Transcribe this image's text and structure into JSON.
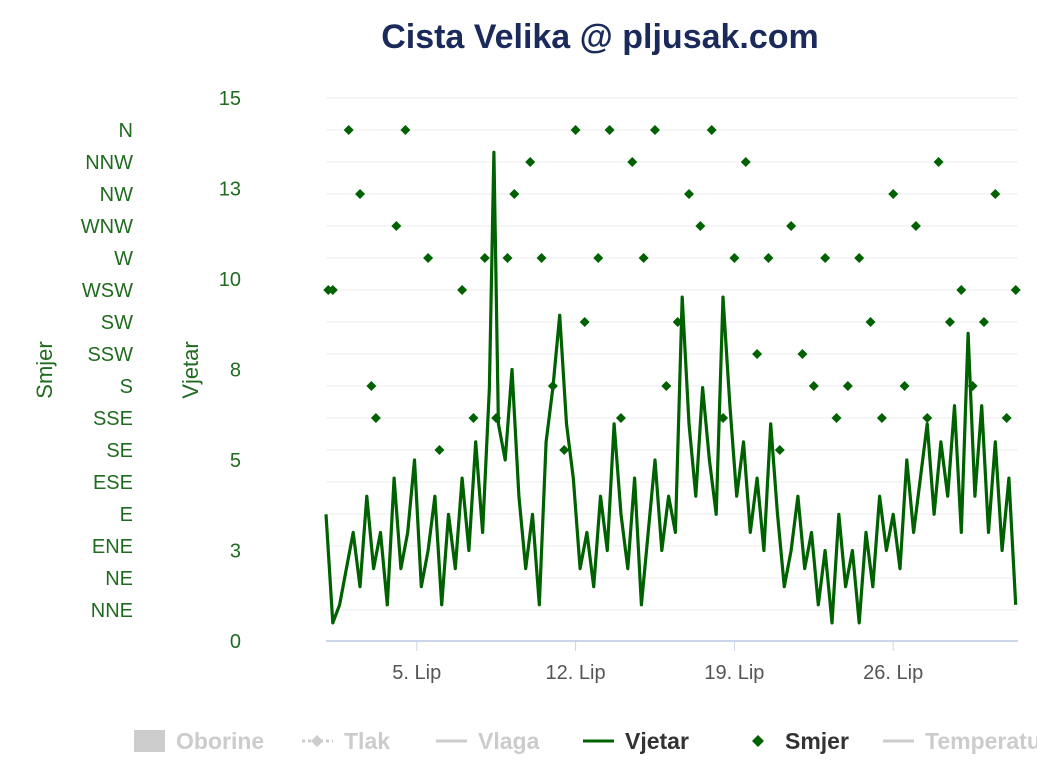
{
  "chart_data": {
    "type": "line",
    "title": "Cista Velika @ pljusak.com",
    "x_tick_labels": [
      "5. Lip",
      "12. Lip",
      "19. Lip",
      "26. Lip"
    ],
    "x_tick_days": [
      5,
      12,
      19,
      26
    ],
    "x_range_days": [
      1,
      31.5
    ],
    "y_left_wind": {
      "label": "Vjetar",
      "ticks": [
        "0",
        "3",
        "5",
        "8",
        "10",
        "13",
        "15"
      ],
      "range": [
        0,
        15
      ]
    },
    "y_left_direction": {
      "label": "Smjer",
      "ticks": [
        "N",
        "NNW",
        "NW",
        "WNW",
        "W",
        "WSW",
        "SW",
        "SSW",
        "S",
        "SSE",
        "SE",
        "ESE",
        "E",
        "ENE",
        "NE",
        "NNE"
      ]
    },
    "grid": true,
    "legend": {
      "position": "bottom",
      "items": [
        {
          "label": "Oborine",
          "symbol": "rect",
          "active": false
        },
        {
          "label": "Tlak",
          "symbol": "dash-diamond",
          "active": false
        },
        {
          "label": "Vlaga",
          "symbol": "line",
          "active": false
        },
        {
          "label": "Vjetar",
          "symbol": "line",
          "active": true
        },
        {
          "label": "Smjer",
          "symbol": "diamond",
          "active": true
        },
        {
          "label": "Temperatu",
          "symbol": "line",
          "active": false
        }
      ]
    },
    "colors": {
      "series": "#006100",
      "axis_text": "#1f6b1f",
      "title": "#1a2a5a",
      "inactive": "#cccccc",
      "grid": "#eeeeee"
    },
    "series": [
      {
        "name": "Vjetar",
        "x": [
          1.0,
          1.3,
          1.6,
          1.9,
          2.2,
          2.5,
          2.8,
          3.1,
          3.4,
          3.7,
          4.0,
          4.3,
          4.6,
          4.9,
          5.2,
          5.5,
          5.8,
          6.1,
          6.4,
          6.7,
          7.0,
          7.3,
          7.6,
          7.9,
          8.2,
          8.4,
          8.6,
          8.9,
          9.2,
          9.5,
          9.8,
          10.1,
          10.4,
          10.7,
          11.0,
          11.3,
          11.6,
          11.9,
          12.2,
          12.5,
          12.8,
          13.1,
          13.4,
          13.7,
          14.0,
          14.3,
          14.6,
          14.9,
          15.2,
          15.5,
          15.8,
          16.1,
          16.4,
          16.7,
          17.0,
          17.3,
          17.6,
          17.9,
          18.2,
          18.5,
          18.8,
          19.1,
          19.4,
          19.7,
          20.0,
          20.3,
          20.6,
          20.9,
          21.2,
          21.5,
          21.8,
          22.1,
          22.4,
          22.7,
          23.0,
          23.3,
          23.6,
          23.9,
          24.2,
          24.5,
          24.8,
          25.1,
          25.4,
          25.7,
          26.0,
          26.3,
          26.6,
          26.9,
          27.2,
          27.5,
          27.8,
          28.1,
          28.4,
          28.7,
          29.0,
          29.3,
          29.6,
          29.9,
          30.2,
          30.5,
          30.8,
          31.1,
          31.4
        ],
        "y": [
          3.5,
          0.5,
          1.0,
          2.0,
          3.0,
          1.5,
          4.0,
          2.0,
          3.0,
          1.0,
          4.5,
          2.0,
          3.0,
          5.0,
          1.5,
          2.5,
          4.0,
          1.0,
          3.5,
          2.0,
          4.5,
          2.5,
          5.5,
          3.0,
          7.0,
          13.5,
          6.0,
          5.0,
          7.5,
          4.0,
          2.0,
          3.5,
          1.0,
          5.5,
          7.0,
          9.0,
          6.0,
          4.5,
          2.0,
          3.0,
          1.5,
          4.0,
          2.5,
          6.0,
          3.5,
          2.0,
          4.5,
          1.0,
          3.0,
          5.0,
          2.5,
          4.0,
          3.0,
          9.5,
          6.0,
          4.0,
          7.0,
          5.0,
          3.5,
          9.5,
          6.5,
          4.0,
          5.5,
          3.0,
          4.5,
          2.5,
          6.0,
          3.5,
          1.5,
          2.5,
          4.0,
          2.0,
          3.0,
          1.0,
          2.5,
          0.5,
          3.5,
          1.5,
          2.5,
          0.5,
          3.0,
          1.5,
          4.0,
          2.5,
          3.5,
          2.0,
          5.0,
          3.0,
          4.5,
          6.0,
          3.5,
          5.5,
          4.0,
          6.5,
          3.0,
          8.5,
          4.0,
          6.5,
          3.0,
          5.5,
          2.5,
          4.5,
          1.0
        ]
      },
      {
        "name": "Smjer",
        "x": [
          1.1,
          1.3,
          2.0,
          2.5,
          3.0,
          3.2,
          4.1,
          4.5,
          5.5,
          6.0,
          7.0,
          7.5,
          8.0,
          8.5,
          9.0,
          9.3,
          10.0,
          10.5,
          11.0,
          11.5,
          12.0,
          12.4,
          13.0,
          13.5,
          14.0,
          14.5,
          15.0,
          15.5,
          16.0,
          16.5,
          17.0,
          17.5,
          18.0,
          18.5,
          19.0,
          19.5,
          20.0,
          20.5,
          21.0,
          21.5,
          22.0,
          22.5,
          23.0,
          23.5,
          24.0,
          24.5,
          25.0,
          25.5,
          26.0,
          26.5,
          27.0,
          27.5,
          28.0,
          28.5,
          29.0,
          29.5,
          30.0,
          30.5,
          31.0,
          31.4
        ],
        "y": [
          "WSW",
          "WSW",
          "N",
          "NW",
          "S",
          "SSE",
          "WNW",
          "N",
          "W",
          "SE",
          "WSW",
          "SSE",
          "W",
          "SSE",
          "W",
          "NW",
          "NNW",
          "W",
          "S",
          "SE",
          "N",
          "SW",
          "W",
          "N",
          "SSE",
          "NNW",
          "W",
          "N",
          "S",
          "SW",
          "NW",
          "WNW",
          "N",
          "SSE",
          "W",
          "NNW",
          "SSW",
          "W",
          "SE",
          "WNW",
          "SSW",
          "S",
          "W",
          "SSE",
          "S",
          "W",
          "SW",
          "SSE",
          "NW",
          "S",
          "WNW",
          "SSE",
          "NNW",
          "SW",
          "WSW",
          "S",
          "SW",
          "NW",
          "SSE",
          "WSW"
        ]
      }
    ]
  }
}
